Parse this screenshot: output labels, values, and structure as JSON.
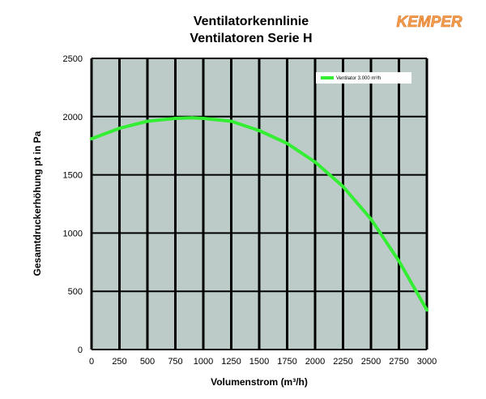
{
  "logo": {
    "text": "KEMPER",
    "color": "#f0a050"
  },
  "chart_data": {
    "type": "line",
    "title": [
      "Ventilatorkennlinie",
      "Ventilatoren Serie H"
    ],
    "xlabel": "Volumenstrom (m³/h)",
    "ylabel": "Gesamtdruckerhöhung pt in Pa",
    "xlim": [
      0,
      3000
    ],
    "ylim": [
      0,
      2500
    ],
    "xticks": [
      0,
      250,
      500,
      750,
      1000,
      1250,
      1500,
      1750,
      2000,
      2250,
      2500,
      2750,
      3000
    ],
    "yticks": [
      0,
      500,
      1000,
      1500,
      2000,
      2500
    ],
    "grid": true,
    "plot_background": "#bccbc8",
    "grid_color": "#000000",
    "legend_position": "top-right",
    "series": [
      {
        "name": "Ventilator 3.000 m³/h",
        "color": "#33ee33",
        "x": [
          0,
          250,
          500,
          750,
          900,
          1000,
          1250,
          1500,
          1750,
          2000,
          2250,
          2500,
          2750,
          3000
        ],
        "y": [
          1810,
          1900,
          1960,
          1985,
          1990,
          1985,
          1960,
          1880,
          1770,
          1610,
          1400,
          1120,
          760,
          340
        ]
      }
    ]
  }
}
